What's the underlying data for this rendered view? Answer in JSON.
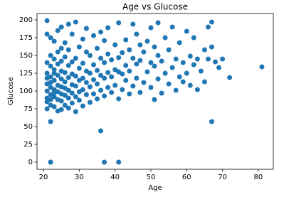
{
  "chart_data": {
    "type": "scatter",
    "title": "Age vs Glucose",
    "x_label": "Age",
    "y_label": "Glucose",
    "color": "#1f77b4",
    "grid": false,
    "xlim": [
      18.2,
      84.2
    ],
    "ylim": [
      -10,
      209
    ],
    "xticks": [
      20,
      30,
      40,
      50,
      60,
      70,
      80
    ],
    "yticks": [
      0,
      25,
      50,
      75,
      100,
      125,
      150,
      175,
      200
    ],
    "x": [
      21,
      21,
      21,
      21,
      21,
      21,
      21,
      21,
      21,
      21,
      22,
      22,
      22,
      22,
      22,
      22,
      22,
      22,
      22,
      22,
      22,
      22,
      23,
      23,
      23,
      23,
      23,
      23,
      23,
      23,
      23,
      24,
      24,
      24,
      24,
      24,
      24,
      24,
      24,
      25,
      25,
      25,
      25,
      25,
      25,
      25,
      25,
      25,
      26,
      26,
      26,
      26,
      26,
      26,
      26,
      27,
      27,
      27,
      27,
      27,
      27,
      27,
      28,
      28,
      28,
      28,
      28,
      28,
      29,
      29,
      29,
      29,
      29,
      29,
      30,
      30,
      30,
      30,
      30,
      31,
      31,
      31,
      31,
      31,
      32,
      32,
      32,
      32,
      32,
      33,
      33,
      33,
      33,
      34,
      34,
      34,
      34,
      35,
      35,
      35,
      35,
      36,
      36,
      36,
      36,
      36,
      37,
      37,
      37,
      37,
      37,
      38,
      38,
      38,
      38,
      39,
      39,
      39,
      40,
      40,
      40,
      41,
      41,
      41,
      41,
      41,
      42,
      42,
      42,
      43,
      43,
      43,
      44,
      44,
      44,
      45,
      45,
      45,
      46,
      46,
      46,
      47,
      47,
      47,
      48,
      48,
      49,
      49,
      50,
      50,
      50,
      51,
      51,
      51,
      52,
      52,
      52,
      53,
      53,
      54,
      54,
      55,
      55,
      56,
      56,
      57,
      57,
      58,
      58,
      59,
      59,
      60,
      60,
      61,
      61,
      62,
      62,
      63,
      63,
      64,
      65,
      65,
      66,
      66,
      67,
      67,
      67,
      68,
      69,
      70,
      72,
      81
    ],
    "values": [
      75,
      90,
      100,
      110,
      125,
      140,
      180,
      199,
      85,
      118,
      0,
      0,
      57,
      80,
      95,
      105,
      120,
      135,
      150,
      175,
      88,
      112,
      78,
      92,
      102,
      115,
      130,
      145,
      170,
      98,
      125,
      72,
      88,
      99,
      108,
      122,
      138,
      155,
      185,
      74,
      86,
      96,
      106,
      117,
      128,
      142,
      160,
      190,
      80,
      94,
      104,
      113,
      126,
      148,
      168,
      76,
      90,
      101,
      119,
      136,
      158,
      194,
      83,
      97,
      109,
      124,
      141,
      180,
      71,
      92,
      107,
      121,
      146,
      197,
      87,
      99,
      115,
      132,
      162,
      79,
      102,
      118,
      139,
      173,
      95,
      112,
      128,
      155,
      188,
      84,
      106,
      125,
      150,
      96,
      116,
      137,
      178,
      89,
      110,
      129,
      160,
      44,
      101,
      122,
      146,
      183,
      0,
      93,
      118,
      140,
      171,
      105,
      126,
      152,
      189,
      98,
      120,
      144,
      108,
      130,
      165,
      0,
      89,
      127,
      147,
      196,
      102,
      124,
      154,
      115,
      136,
      172,
      96,
      128,
      158,
      107,
      146,
      194,
      118,
      138,
      180,
      98,
      143,
      165,
      112,
      155,
      127,
      170,
      105,
      140,
      189,
      88,
      135,
      162,
      117,
      150,
      196,
      97,
      142,
      125,
      175,
      110,
      158,
      133,
      190,
      101,
      145,
      120,
      168,
      113,
      140,
      125,
      184,
      108,
      149,
      137,
      175,
      102,
      145,
      128,
      113,
      158,
      145,
      190,
      57,
      162,
      197,
      141,
      133,
      145,
      119,
      134
    ]
  }
}
